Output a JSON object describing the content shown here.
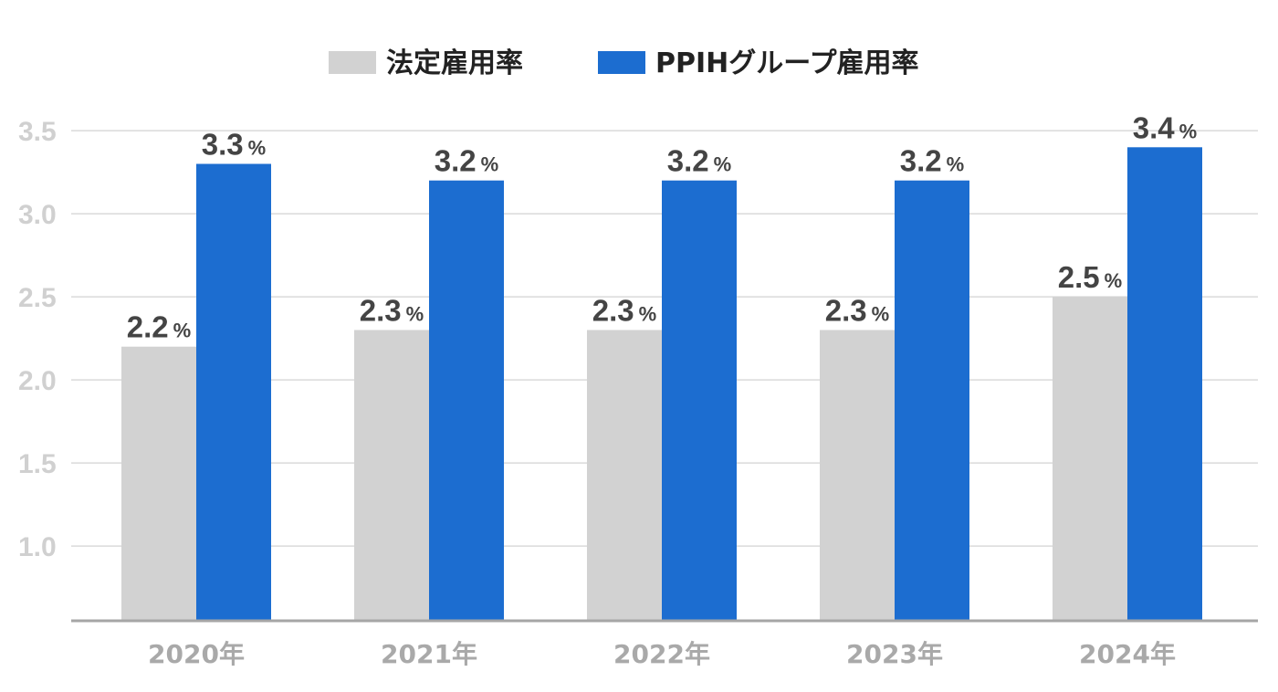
{
  "chart_data": {
    "type": "bar",
    "categories": [
      "2020年",
      "2021年",
      "2022年",
      "2023年",
      "2024年"
    ],
    "series": [
      {
        "name": "法定雇用率",
        "color": "#d2d2d2",
        "values": [
          2.2,
          2.3,
          2.3,
          2.3,
          2.5
        ],
        "labels": [
          "2.2",
          "2.3",
          "2.3",
          "2.3",
          "2.5"
        ]
      },
      {
        "name": "PPIHグループ雇用率",
        "color": "#1c6dd0",
        "values": [
          3.3,
          3.2,
          3.2,
          3.2,
          3.4
        ],
        "labels": [
          "3.3",
          "3.2",
          "3.2",
          "3.2",
          "3.4"
        ]
      }
    ],
    "value_unit": "%",
    "yticks": [
      "1.0",
      "1.5",
      "2.0",
      "2.5",
      "3.0",
      "3.5"
    ],
    "ylim": [
      0.55,
      3.5
    ],
    "grid": true,
    "legend_position": "top-center",
    "title": "",
    "xlabel": "",
    "ylabel": ""
  }
}
